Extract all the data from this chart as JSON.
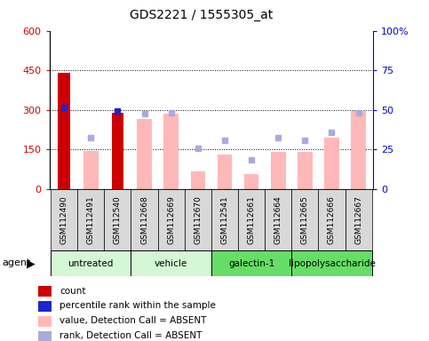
{
  "title": "GDS2221 / 1555305_at",
  "samples": [
    "GSM112490",
    "GSM112491",
    "GSM112540",
    "GSM112668",
    "GSM112669",
    "GSM112670",
    "GSM112541",
    "GSM112661",
    "GSM112664",
    "GSM112665",
    "GSM112666",
    "GSM112667"
  ],
  "count_values": [
    440,
    null,
    290,
    null,
    null,
    null,
    null,
    null,
    null,
    null,
    null,
    null
  ],
  "percentile_values": [
    310,
    null,
    295,
    null,
    null,
    null,
    null,
    null,
    null,
    null,
    null,
    null
  ],
  "absent_value_values": [
    null,
    145,
    null,
    265,
    285,
    68,
    130,
    58,
    140,
    140,
    195,
    295
  ],
  "absent_rank_values": [
    null,
    195,
    null,
    285,
    290,
    155,
    185,
    110,
    195,
    185,
    215,
    290
  ],
  "ylim_left": [
    0,
    600
  ],
  "ylim_right": [
    0,
    100
  ],
  "yticks_left": [
    0,
    150,
    300,
    450,
    600
  ],
  "yticks_right": [
    0,
    25,
    50,
    75,
    100
  ],
  "ytick_labels_left": [
    "0",
    "150",
    "300",
    "450",
    "600"
  ],
  "ytick_labels_right": [
    "0",
    "25",
    "50",
    "75",
    "100%"
  ],
  "count_color": "#cc0000",
  "percentile_color": "#2222cc",
  "absent_value_color": "#ffb8b8",
  "absent_rank_color": "#aaaadd",
  "bg_color": "#ffffff",
  "plot_bg_color": "#ffffff",
  "agent_groups": [
    {
      "label": "untreated",
      "start": 0,
      "end": 2,
      "color": "#d4f7d4"
    },
    {
      "label": "vehicle",
      "start": 3,
      "end": 5,
      "color": "#d4f7d4"
    },
    {
      "label": "galectin-1",
      "start": 6,
      "end": 8,
      "color": "#66dd66"
    },
    {
      "label": "lipopolysaccharide",
      "start": 9,
      "end": 11,
      "color": "#66dd66"
    }
  ],
  "legend_items": [
    {
      "color": "#cc0000",
      "label": "count"
    },
    {
      "color": "#2222cc",
      "label": "percentile rank within the sample"
    },
    {
      "color": "#ffb8b8",
      "label": "value, Detection Call = ABSENT"
    },
    {
      "color": "#aaaadd",
      "label": "rank, Detection Call = ABSENT"
    }
  ]
}
